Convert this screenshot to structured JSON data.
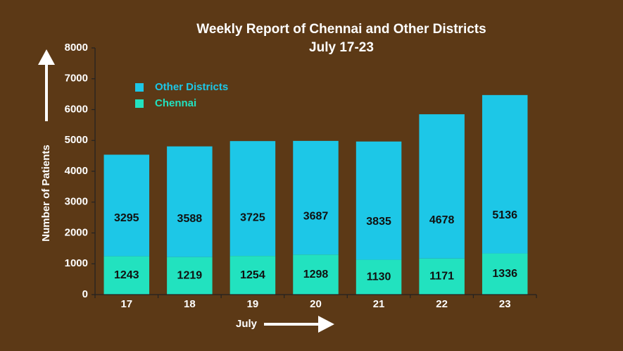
{
  "chart_data": {
    "type": "stacked_bar",
    "title": "Weekly Report of Chennai and Other Districts",
    "subtitle": "July 17-23",
    "x_label": "July",
    "y_label": "Number of Patients",
    "categories": [
      "17",
      "18",
      "19",
      "20",
      "21",
      "22",
      "23"
    ],
    "series": [
      {
        "name": "Chennai",
        "color": "#22e2bf",
        "values": [
          1243,
          1219,
          1254,
          1298,
          1130,
          1171,
          1336
        ]
      },
      {
        "name": "Other Districts",
        "color": "#1dc7e7",
        "values": [
          3295,
          3588,
          3725,
          3687,
          3835,
          4678,
          5136
        ]
      }
    ],
    "ylim": [
      0,
      8000
    ],
    "yticks": [
      0,
      1000,
      2000,
      3000,
      4000,
      5000,
      6000,
      7000,
      8000
    ],
    "legend": "upper left",
    "grid": false
  }
}
